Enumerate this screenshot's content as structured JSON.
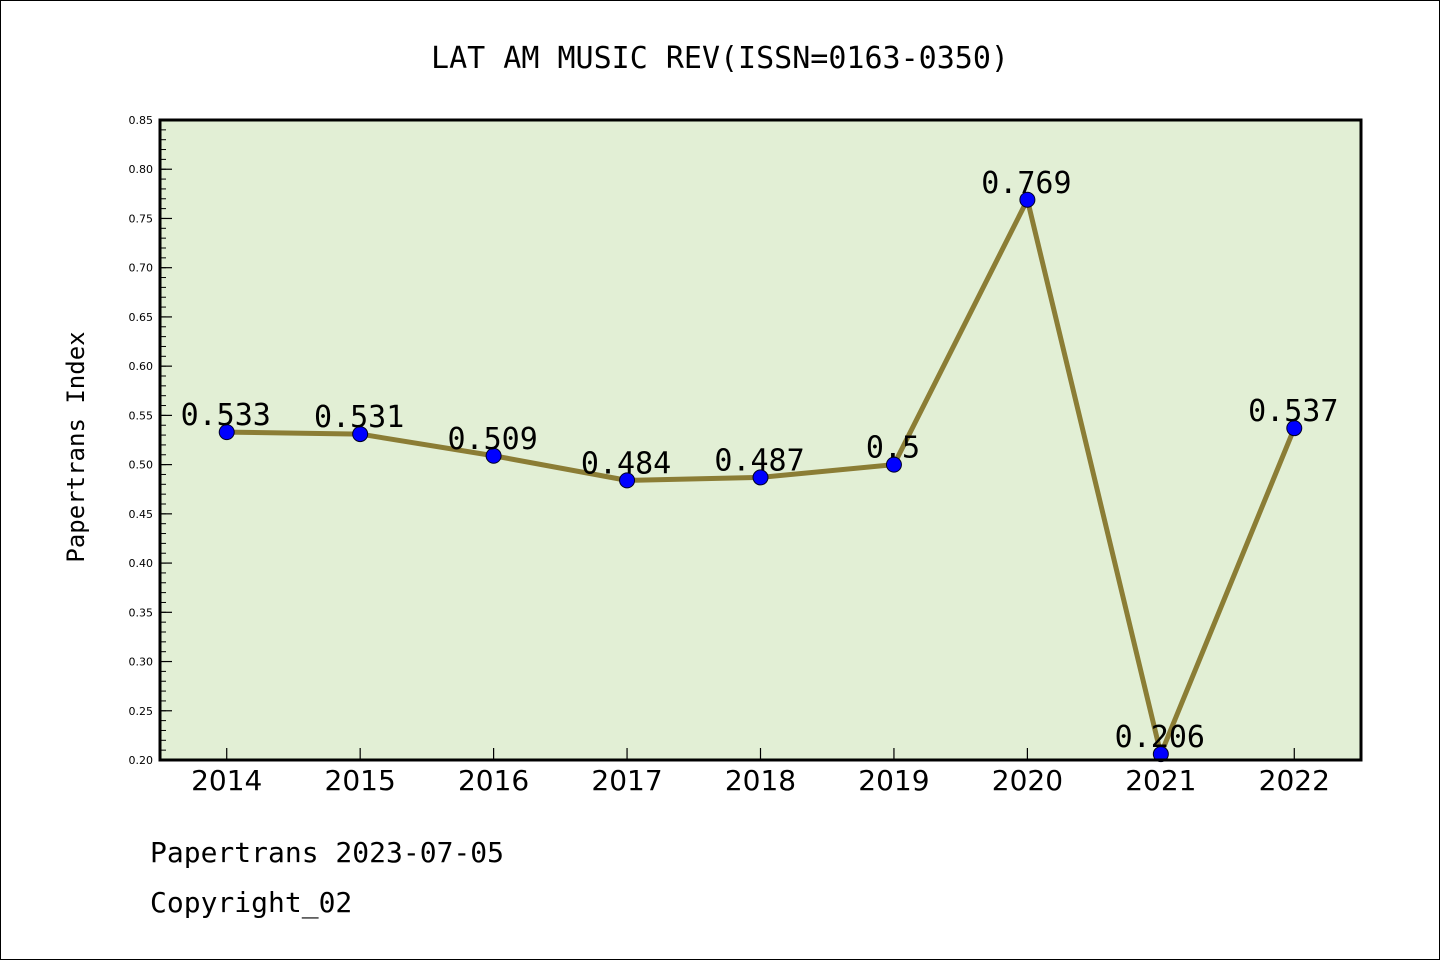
{
  "chart_data": {
    "type": "line",
    "title": "LAT AM MUSIC REV(ISSN=0163-0350)",
    "xlabel": "",
    "ylabel": "Papertrans Index",
    "categories": [
      "2014",
      "2015",
      "2016",
      "2017",
      "2018",
      "2019",
      "2020",
      "2021",
      "2022"
    ],
    "values": [
      0.533,
      0.531,
      0.509,
      0.484,
      0.487,
      0.5,
      0.769,
      0.206,
      0.537
    ],
    "data_labels": [
      "0.533",
      "0.531",
      "0.509",
      "0.484",
      "0.487",
      "0.5",
      "0.769",
      "0.206",
      "0.537"
    ],
    "ylim": [
      0.2,
      0.85
    ],
    "yticks": [
      "0.20",
      "0.25",
      "0.30",
      "0.35",
      "0.40",
      "0.45",
      "0.50",
      "0.55",
      "0.60",
      "0.65",
      "0.70",
      "0.75",
      "0.80",
      "0.85"
    ],
    "grid": false,
    "legend": "none",
    "colors": {
      "plot_background": "#e2efd5",
      "line": "#8b7d35",
      "marker": "#0000ff"
    }
  },
  "footer": {
    "line1": "Papertrans 2023-07-05",
    "line2": "Copyright_02"
  }
}
